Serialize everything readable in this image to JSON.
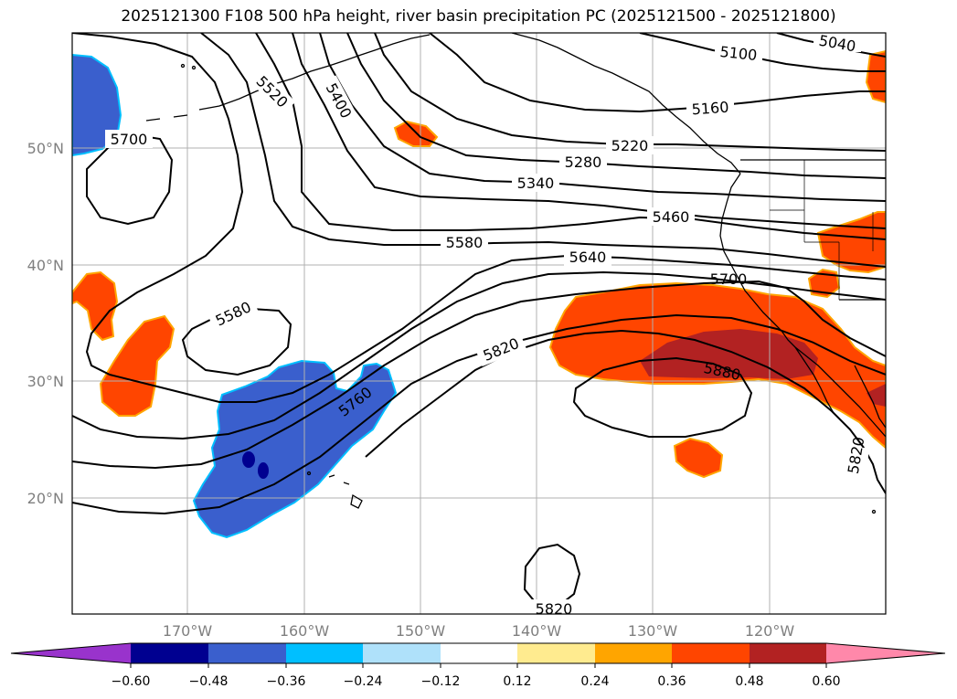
{
  "title": "2025121300 F108 500 hPa height, river basin precipitation PC (2025121500 - 2025121800)",
  "lat_labels": [
    "50°N",
    "40°N",
    "30°N",
    "20°N"
  ],
  "lon_labels": [
    "170°W",
    "160°W",
    "150°W",
    "140°W",
    "130°W",
    "120°W"
  ],
  "contour_labels": [
    "5040",
    "5100",
    "5160",
    "5220",
    "5280",
    "5340",
    "5400",
    "5460",
    "5520",
    "5580",
    "5580",
    "5640",
    "5700",
    "5700",
    "5760",
    "5820",
    "5820",
    "5820",
    "5880"
  ],
  "colorbar": {
    "ticks": [
      "−0.60",
      "−0.48",
      "−0.36",
      "−0.24",
      "−0.12",
      "0.12",
      "0.24",
      "0.36",
      "0.48",
      "0.60"
    ],
    "colors": [
      "#9933cc",
      "#000090",
      "#3a5fcd",
      "#00bfff",
      "#afe1fa",
      "#ffffff",
      "#ffeb8f",
      "#ffa500",
      "#ff4500",
      "#b22222",
      "#ff88aa"
    ]
  },
  "fill_colors": {
    "neg_strong": "#3a5fcd",
    "neg_extreme": "#000090",
    "neg_edge": "#00bfff",
    "pos_moderate": "#ff4500",
    "pos_strong": "#b22222",
    "pos_edge": "#ffa500"
  }
}
